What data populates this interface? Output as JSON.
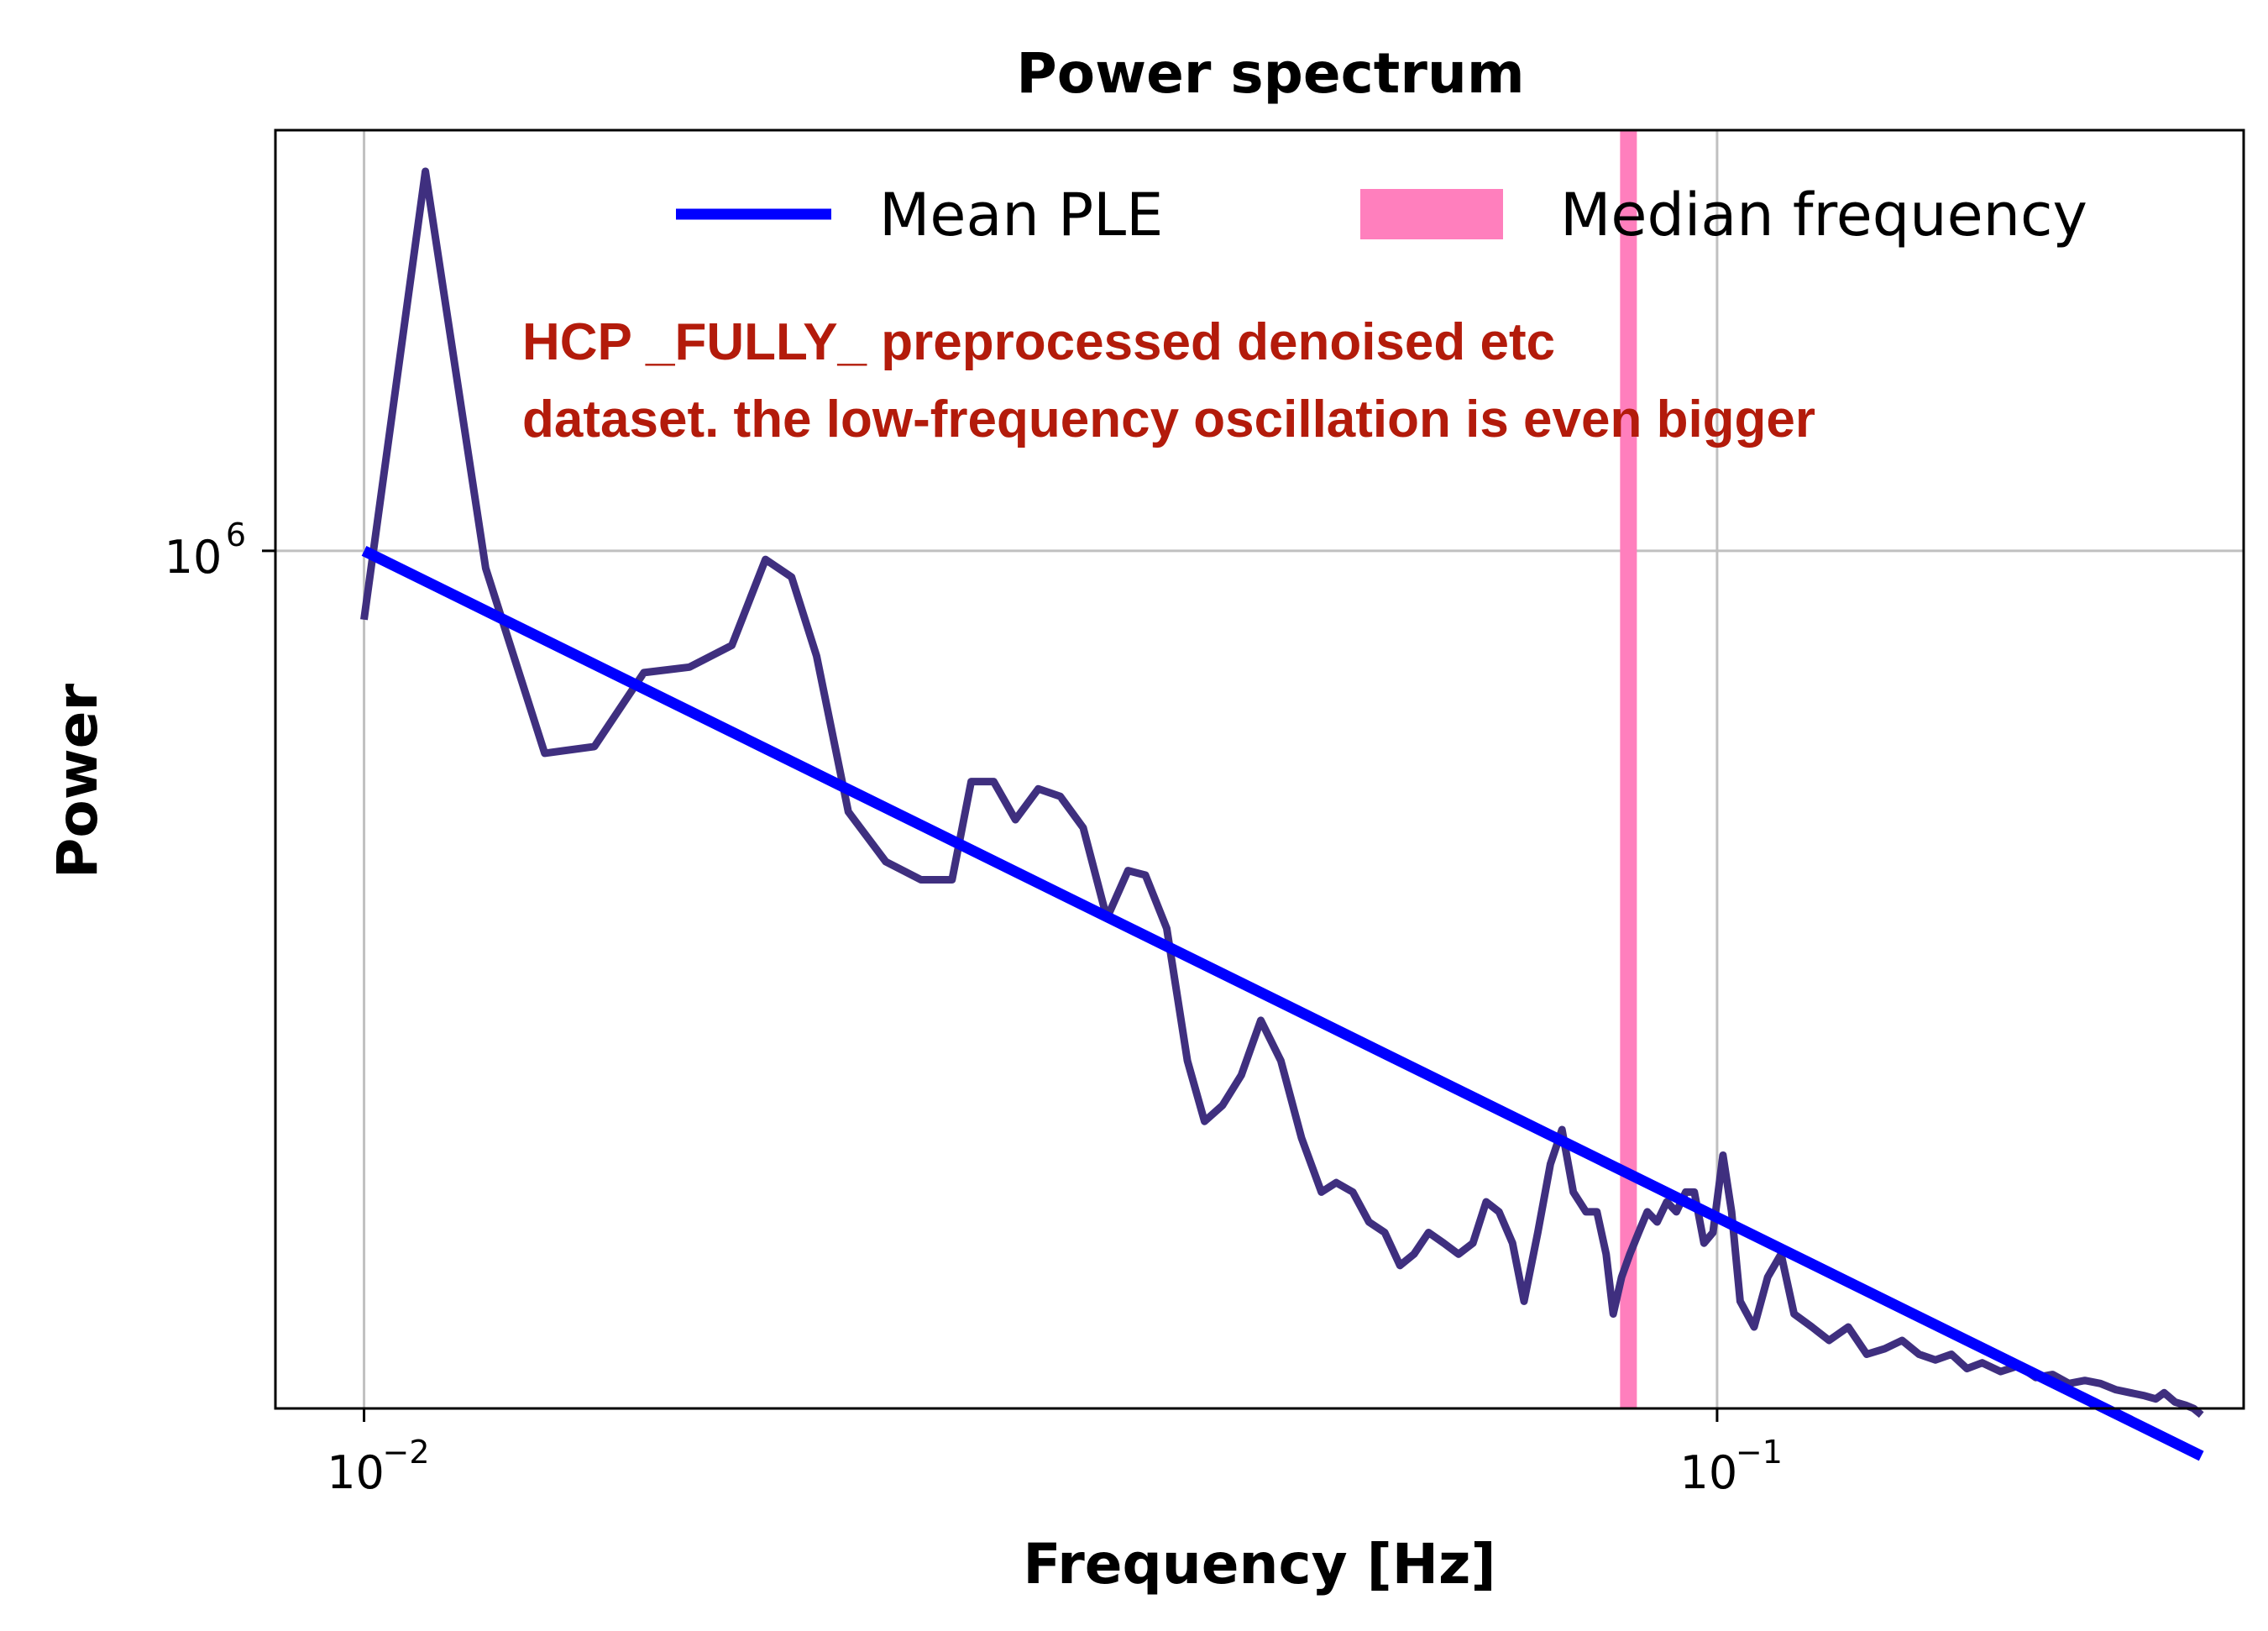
{
  "chart_data": {
    "type": "line",
    "title": "Power spectrum",
    "xlabel": "Frequency [Hz]",
    "ylabel": "Power",
    "xscale": "log",
    "yscale": "log",
    "xlim": [
      0.0086,
      0.245
    ],
    "ylim": [
      132000,
      2700000
    ],
    "grid": true,
    "x_ticks": [
      {
        "value": 0.01,
        "base": "10",
        "exp": "−2"
      },
      {
        "value": 0.1,
        "base": "10",
        "exp": "−1"
      }
    ],
    "y_ticks": [
      {
        "value": 1000000,
        "base": "10",
        "exp": "6"
      }
    ],
    "legend": {
      "position": "top-right",
      "entries": [
        {
          "label": "Mean PLE",
          "type": "line",
          "color": "#0000ff"
        },
        {
          "label": "Median frequency",
          "type": "patch",
          "color": "#ff7fbd"
        }
      ]
    },
    "annotation": {
      "lines": [
        "HCP _FULLY_ preprocessed denoised etc",
        "dataset. the low-frequency oscillation is even bigger"
      ],
      "color": "#b31b0b"
    },
    "series": [
      {
        "name": "",
        "color": "#3f2f7f",
        "points": [
          [
            0.01,
            850000
          ],
          [
            0.0111,
            2450000
          ],
          [
            0.0123,
            960000
          ],
          [
            0.0136,
            620000
          ],
          [
            0.0148,
            630000
          ],
          [
            0.0161,
            750000
          ],
          [
            0.0174,
            760000
          ],
          [
            0.0187,
            800000
          ],
          [
            0.0198,
            980000
          ],
          [
            0.0207,
            940000
          ],
          [
            0.0216,
            780000
          ],
          [
            0.0228,
            540000
          ],
          [
            0.0243,
            480000
          ],
          [
            0.0258,
            460000
          ],
          [
            0.0272,
            460000
          ],
          [
            0.0281,
            580000
          ],
          [
            0.0292,
            580000
          ],
          [
            0.0303,
            530000
          ],
          [
            0.0315,
            570000
          ],
          [
            0.0327,
            560000
          ],
          [
            0.034,
            520000
          ],
          [
            0.0354,
            420000
          ],
          [
            0.0367,
            470000
          ],
          [
            0.0378,
            465000
          ],
          [
            0.0392,
            410000
          ],
          [
            0.0406,
            300000
          ],
          [
            0.0418,
            260000
          ],
          [
            0.0431,
            270000
          ],
          [
            0.0445,
            290000
          ],
          [
            0.046,
            330000
          ],
          [
            0.0476,
            300000
          ],
          [
            0.0493,
            250000
          ],
          [
            0.051,
            220000
          ],
          [
            0.0523,
            225000
          ],
          [
            0.0538,
            220000
          ],
          [
            0.0553,
            205000
          ],
          [
            0.0568,
            200000
          ],
          [
            0.0583,
            185000
          ],
          [
            0.0597,
            190000
          ],
          [
            0.0612,
            200000
          ],
          [
            0.0628,
            195000
          ],
          [
            0.0644,
            190000
          ],
          [
            0.066,
            195000
          ],
          [
            0.0675,
            215000
          ],
          [
            0.069,
            210000
          ],
          [
            0.0706,
            195000
          ],
          [
            0.072,
            170000
          ],
          [
            0.0737,
            200000
          ],
          [
            0.0753,
            235000
          ],
          [
            0.0768,
            255000
          ],
          [
            0.0783,
            220000
          ],
          [
            0.08,
            210000
          ],
          [
            0.0815,
            210000
          ],
          [
            0.0828,
            190000
          ],
          [
            0.0838,
            165000
          ],
          [
            0.085,
            180000
          ],
          [
            0.0862,
            190000
          ],
          [
            0.0875,
            200000
          ],
          [
            0.0888,
            210000
          ],
          [
            0.0903,
            205000
          ],
          [
            0.0918,
            215000
          ],
          [
            0.0933,
            210000
          ],
          [
            0.0948,
            220000
          ],
          [
            0.0962,
            220000
          ],
          [
            0.0978,
            195000
          ],
          [
            0.0993,
            200000
          ],
          [
            0.101,
            240000
          ],
          [
            0.1025,
            210000
          ],
          [
            0.104,
            170000
          ],
          [
            0.1065,
            160000
          ],
          [
            0.109,
            180000
          ],
          [
            0.1115,
            190000
          ],
          [
            0.114,
            165000
          ],
          [
            0.1175,
            160000
          ],
          [
            0.121,
            155000
          ],
          [
            0.125,
            160000
          ],
          [
            0.129,
            150000
          ],
          [
            0.133,
            152000
          ],
          [
            0.137,
            155000
          ],
          [
            0.141,
            150000
          ],
          [
            0.145,
            148000
          ],
          [
            0.149,
            150000
          ],
          [
            0.153,
            145000
          ],
          [
            0.157,
            147000
          ],
          [
            0.162,
            144000
          ],
          [
            0.167,
            146000
          ],
          [
            0.172,
            142000
          ],
          [
            0.177,
            143000
          ],
          [
            0.182,
            140000
          ],
          [
            0.187,
            141000
          ],
          [
            0.192,
            140000
          ],
          [
            0.197,
            138000
          ],
          [
            0.202,
            137000
          ],
          [
            0.207,
            136000
          ],
          [
            0.211,
            135000
          ],
          [
            0.214,
            137000
          ],
          [
            0.218,
            134000
          ],
          [
            0.222,
            133000
          ],
          [
            0.225,
            132000
          ],
          [
            0.228,
            130000
          ]
        ]
      },
      {
        "name": "Mean PLE",
        "color": "#0000ff",
        "points": [
          [
            0.01,
            1000000
          ],
          [
            0.228,
            118000
          ]
        ]
      }
    ],
    "median_frequency": 0.086
  }
}
